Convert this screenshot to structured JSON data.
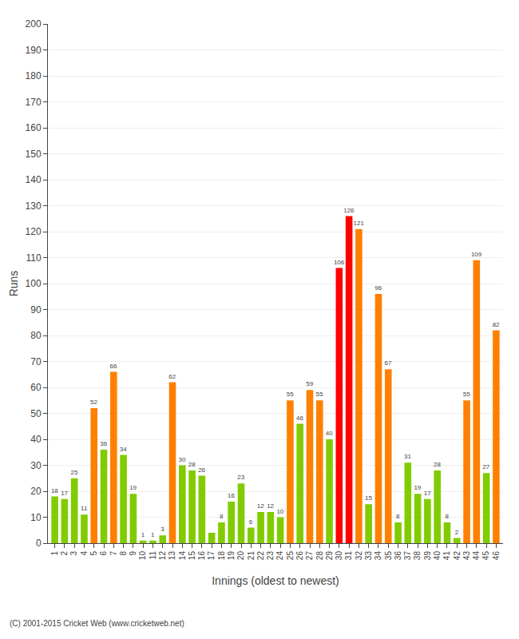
{
  "chart_data": {
    "type": "bar",
    "xlabel": "Innings (oldest to newest)",
    "ylabel": "Runs",
    "annotations": [
      "(C) 2001-2015 Cricket Web (www.cricketweb.net)"
    ],
    "x": [
      1,
      2,
      3,
      4,
      5,
      6,
      7,
      8,
      9,
      10,
      11,
      12,
      13,
      14,
      15,
      16,
      17,
      18,
      19,
      20,
      21,
      22,
      23,
      24,
      25,
      26,
      27,
      28,
      29,
      30,
      31,
      32,
      33,
      34,
      35,
      36,
      37,
      38,
      39,
      40,
      41,
      42,
      43,
      44,
      45,
      46
    ],
    "values": [
      18,
      17,
      25,
      11,
      52,
      36,
      66,
      34,
      19,
      1,
      1,
      3,
      62,
      30,
      28,
      26,
      4,
      8,
      16,
      23,
      6,
      12,
      12,
      10,
      55,
      46,
      59,
      55,
      40,
      106,
      126,
      121,
      15,
      96,
      67,
      8,
      31,
      19,
      17,
      28,
      8,
      2,
      55,
      109,
      27,
      82
    ],
    "value_labels": [
      "18",
      "17",
      "25",
      "11",
      "52",
      "36",
      "66",
      "34",
      "19",
      "1",
      "1",
      "3",
      "62",
      "30",
      "28",
      "26",
      null,
      "8",
      "16",
      "23",
      "6",
      "12",
      "12",
      "10",
      "55",
      "46",
      "59",
      "55",
      "40",
      "106",
      "126",
      "121",
      "15",
      "96",
      "67",
      "8",
      "31",
      "19",
      "17",
      "28",
      "8",
      "2",
      "55",
      "109",
      "27",
      "82"
    ],
    "colors": [
      "#80cc00",
      "#80cc00",
      "#80cc00",
      "#80cc00",
      "#ff8000",
      "#80cc00",
      "#ff8000",
      "#80cc00",
      "#80cc00",
      "#80cc00",
      "#80cc00",
      "#80cc00",
      "#ff8000",
      "#80cc00",
      "#80cc00",
      "#80cc00",
      "#80cc00",
      "#80cc00",
      "#80cc00",
      "#80cc00",
      "#80cc00",
      "#80cc00",
      "#80cc00",
      "#80cc00",
      "#ff8000",
      "#80cc00",
      "#ff8000",
      "#ff8000",
      "#80cc00",
      "#ff0000",
      "#ff0000",
      "#ff8000",
      "#80cc00",
      "#ff8000",
      "#ff8000",
      "#80cc00",
      "#80cc00",
      "#80cc00",
      "#80cc00",
      "#80cc00",
      "#80cc00",
      "#80cc00",
      "#ff8000",
      "#ff8000",
      "#80cc00",
      "#ff8000"
    ],
    "xlim": [
      0.3,
      46.7
    ],
    "xticks": [
      1,
      2,
      3,
      4,
      5,
      6,
      7,
      8,
      9,
      10,
      11,
      12,
      13,
      14,
      15,
      16,
      17,
      18,
      19,
      20,
      21,
      22,
      23,
      24,
      25,
      26,
      27,
      28,
      29,
      30,
      31,
      32,
      33,
      34,
      35,
      36,
      37,
      38,
      39,
      40,
      41,
      42,
      43,
      44,
      45,
      46
    ],
    "ylim": [
      0,
      200
    ],
    "yticks": [
      0,
      10,
      20,
      30,
      40,
      50,
      60,
      70,
      80,
      90,
      100,
      110,
      120,
      130,
      140,
      150,
      160,
      170,
      180,
      190,
      200
    ],
    "grid": true,
    "data_labels": true
  }
}
